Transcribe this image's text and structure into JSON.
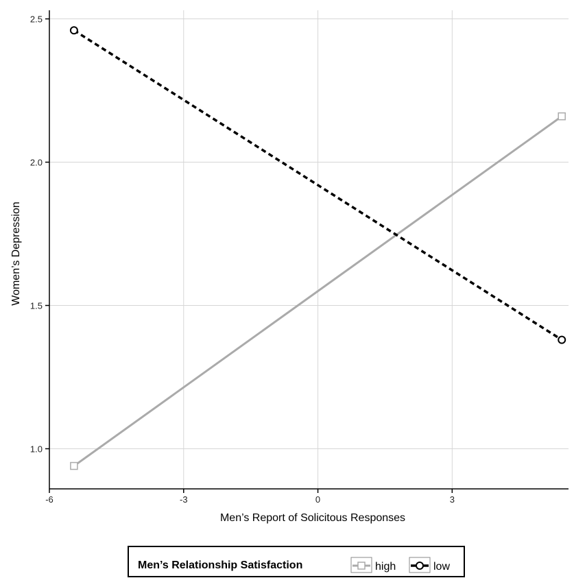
{
  "chart_data": {
    "type": "line",
    "xlabel": "Men’s Report of Solicitous Responses",
    "ylabel": "Women’s Depression",
    "xlim": [
      -6,
      5.6
    ],
    "ylim": [
      0.86,
      2.53
    ],
    "xticks": [
      -6,
      -3,
      0,
      3
    ],
    "yticks": [
      1.0,
      1.5,
      2.0,
      2.5
    ],
    "x_tick_labels": [
      "-6",
      "-3",
      "0",
      "3"
    ],
    "y_tick_labels": [
      "1.0",
      "1.5",
      "2.0",
      "2.5"
    ],
    "grid": true,
    "legend": {
      "title": "Men’s Relationship Satisfaction",
      "position": "bottom"
    },
    "series": [
      {
        "name": "high",
        "x": [
          -5.45,
          5.45
        ],
        "values": [
          0.94,
          2.16
        ],
        "color": "#aaaaaa",
        "line_style": "solid",
        "marker": "square"
      },
      {
        "name": "low",
        "x": [
          -5.45,
          5.45
        ],
        "values": [
          2.46,
          1.38
        ],
        "color": "#000000",
        "line_style": "dashed",
        "marker": "circle"
      }
    ]
  }
}
